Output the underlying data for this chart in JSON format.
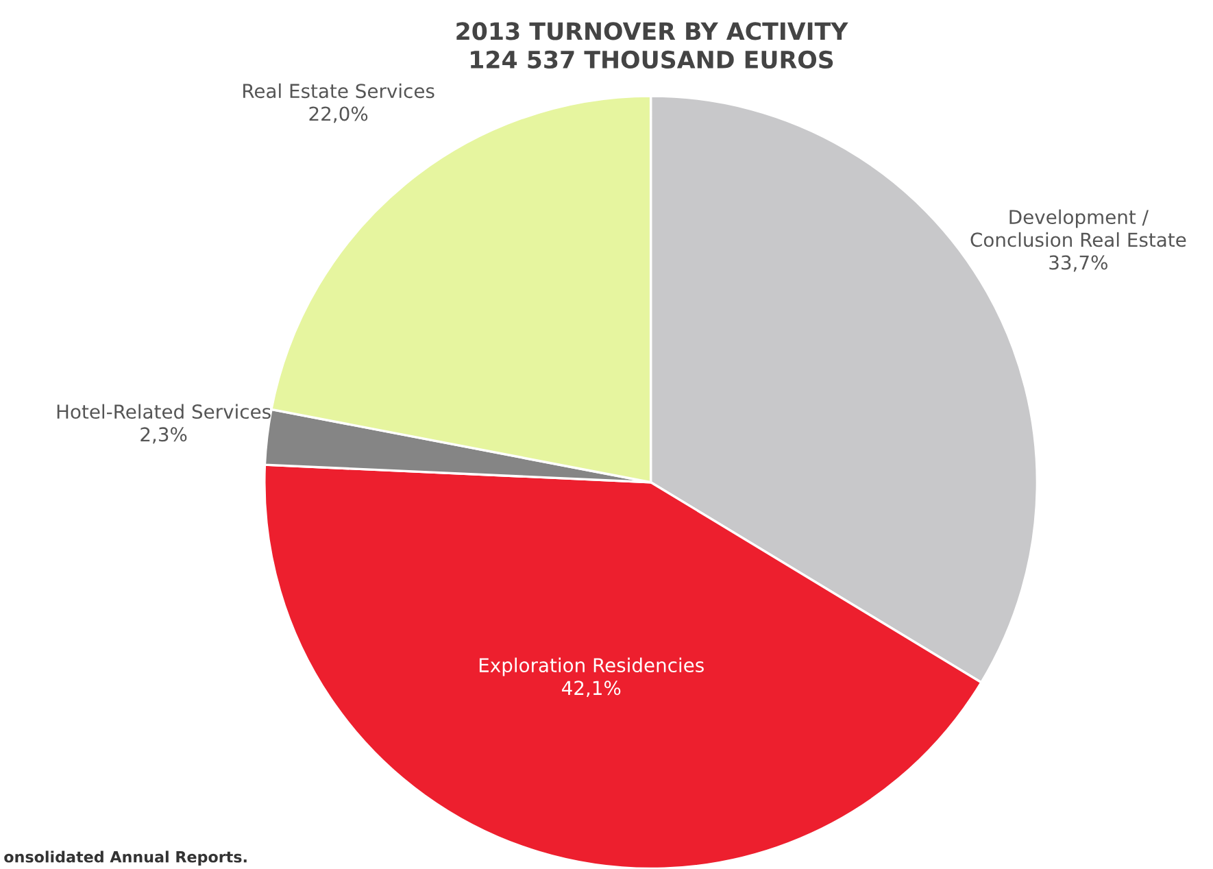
{
  "chart_data": {
    "type": "pie",
    "title": "2013 TURNOVER BY ACTIVITY\n124 537 THOUSAND EUROS",
    "categories": [
      "Development /\nConclusion Real Estate",
      "Exploration Residencies",
      "Hotel-Related Services",
      "Real Estate Services"
    ],
    "values": [
      33.7,
      42.1,
      2.3,
      22.0
    ],
    "value_labels": [
      "33,7%",
      "42,1%",
      "2,3%",
      "22,0%"
    ],
    "colors": [
      "#c8c8ca",
      "#ed1f2e",
      "#858585",
      "#e6f59f"
    ],
    "annotations": [
      "onsolidated Annual Reports."
    ]
  }
}
